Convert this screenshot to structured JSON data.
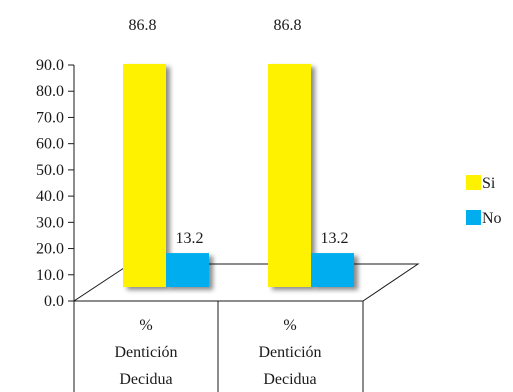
{
  "chart_data": {
    "type": "bar",
    "title": "",
    "xlabel": "",
    "ylabel": "",
    "ylim": [
      0,
      90
    ],
    "y_ticks": [
      "0.0",
      "10.0",
      "20.0",
      "30.0",
      "40.0",
      "50.0",
      "60.0",
      "70.0",
      "80.0",
      "90.0"
    ],
    "categories": [
      [
        "%",
        "Dentición",
        "Decidua"
      ],
      [
        "%",
        "Dentición",
        "Decidua"
      ]
    ],
    "series": [
      {
        "name": "Si",
        "color": "#FFF200",
        "values": [
          86.8,
          86.8
        ],
        "labels": [
          "86.8",
          "86.8"
        ]
      },
      {
        "name": "No",
        "color": "#00AEEF",
        "values": [
          13.2,
          13.2
        ],
        "labels": [
          "13.2",
          "13.2"
        ]
      }
    ],
    "legend_position": "right",
    "grid": false,
    "style": "3d"
  }
}
